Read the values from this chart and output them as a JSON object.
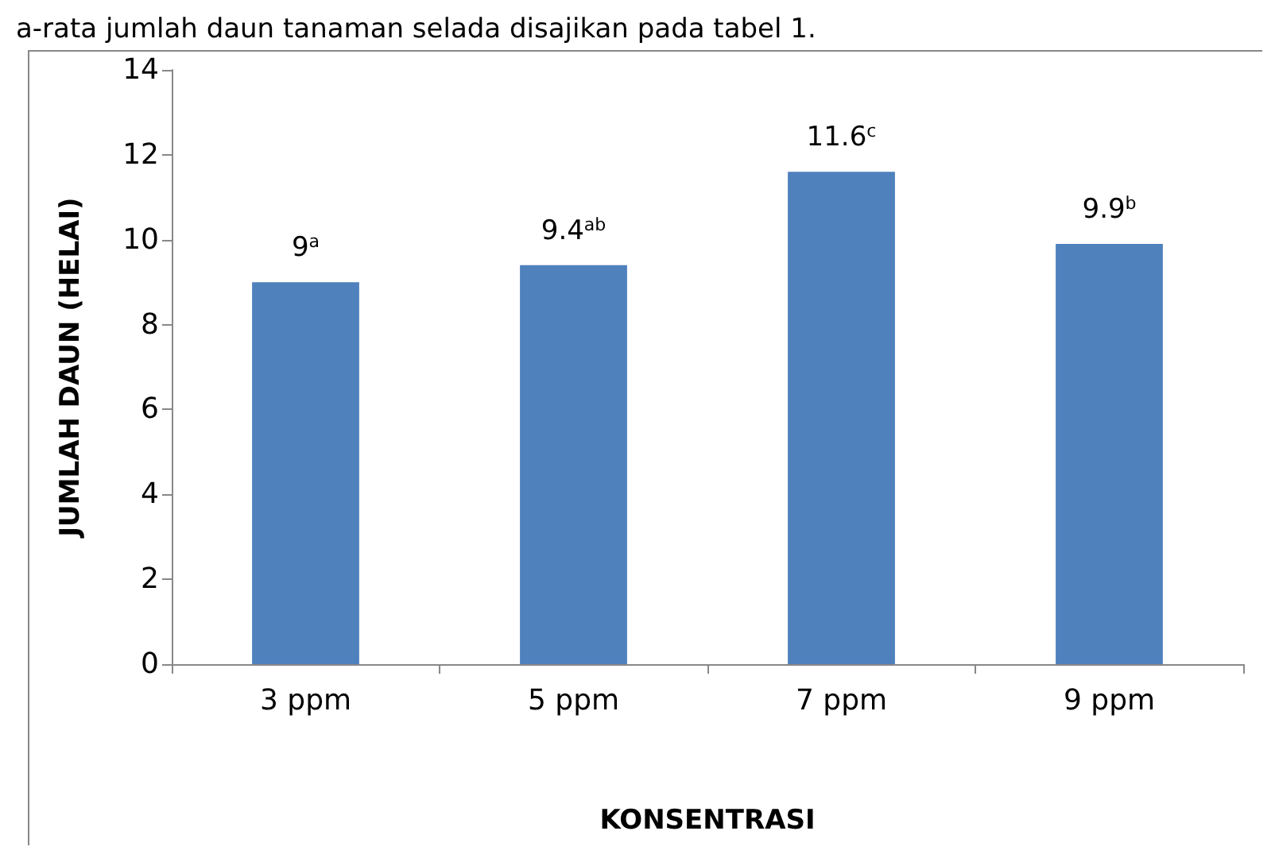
{
  "chart_data": {
    "type": "bar",
    "xlabel": "KONSENTRASI",
    "ylabel": "JUMLAH DAUN (HELAI)",
    "categories": [
      "3 ppm",
      "5 ppm",
      "7 ppm",
      "9 ppm"
    ],
    "values": [
      9,
      9.4,
      11.6,
      9.9
    ],
    "value_labels": [
      "9$^{a}$",
      "9.4$^{ab}$",
      "11.6$^{c}$",
      "9.9$^{b}$"
    ],
    "color": "#4f81bd",
    "ylim": [
      0,
      14
    ],
    "yticks": [
      0,
      2,
      4,
      6,
      8,
      10,
      12,
      14
    ],
    "grid": false,
    "annotations": [
      "a-rata jumlah daun tanaman selada disajikan pada tabel 1."
    ]
  }
}
